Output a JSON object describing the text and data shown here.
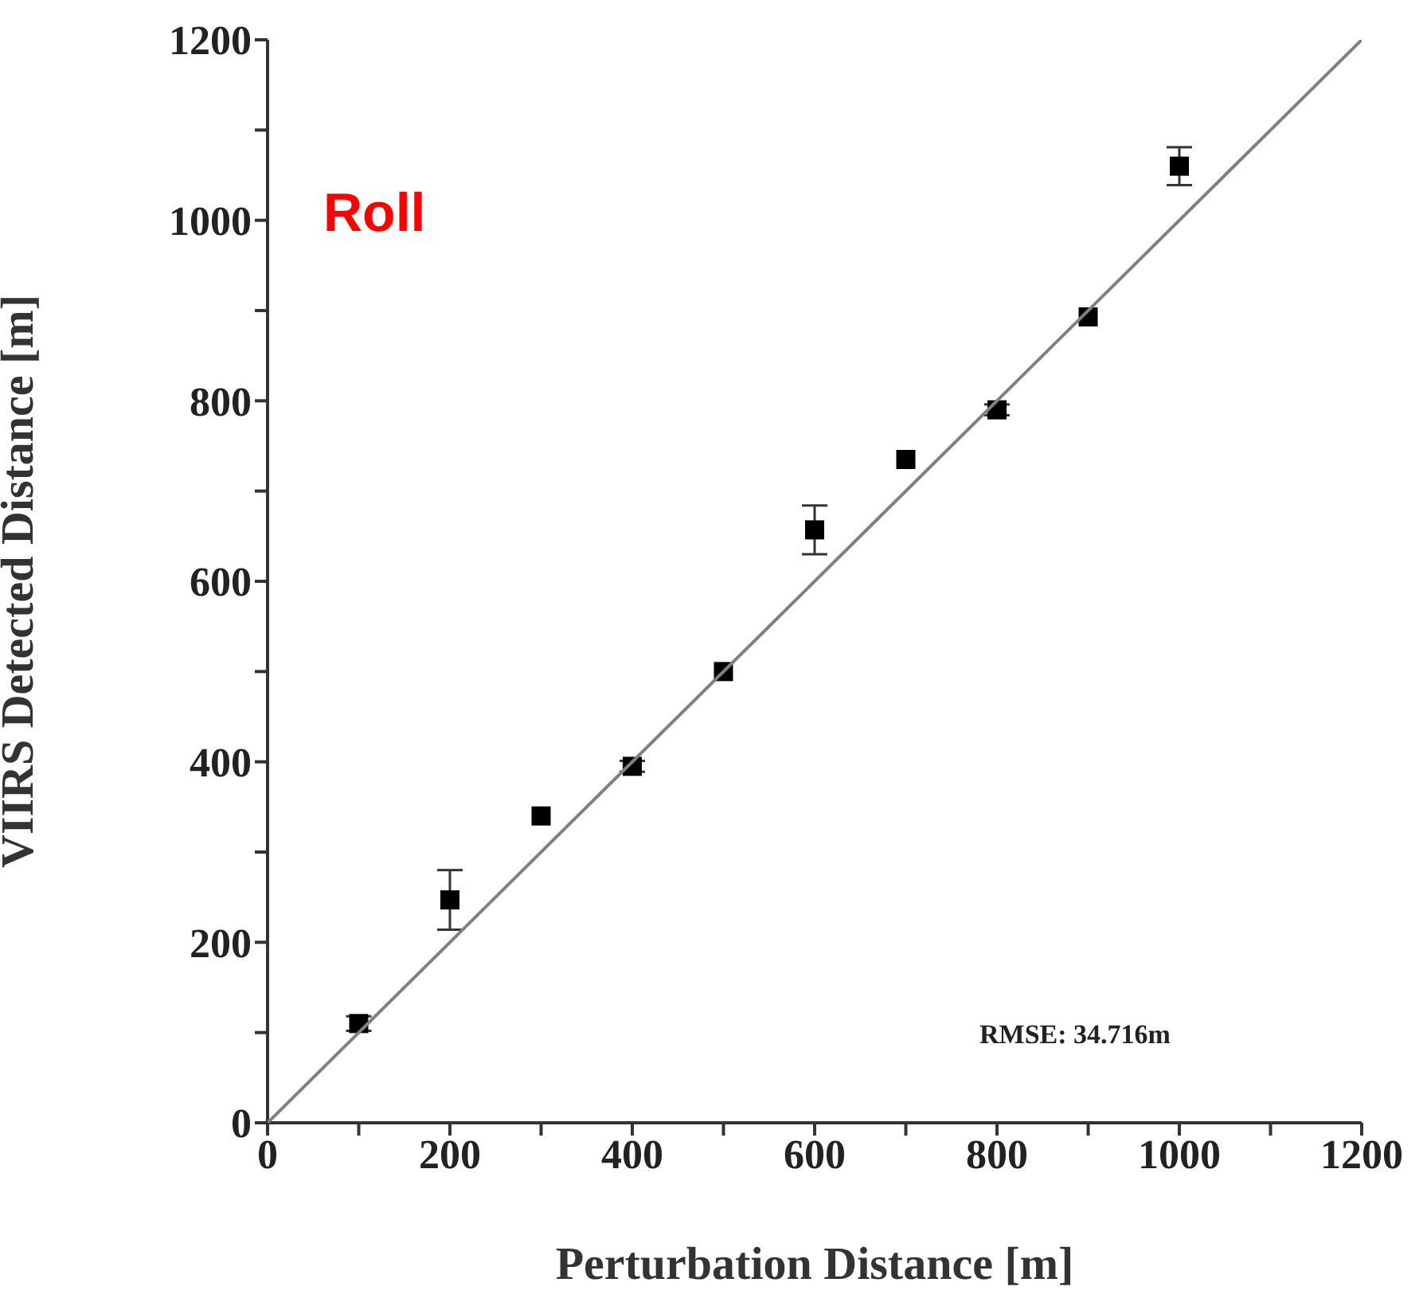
{
  "chart_data": {
    "type": "scatter",
    "xlabel": "Perturbation Distance [m]",
    "ylabel": "VIIRS Detected Distance [m]",
    "x": [
      100,
      200,
      300,
      400,
      500,
      600,
      700,
      800,
      900,
      1000
    ],
    "series": [
      {
        "type": "scatter",
        "color": "#000000",
        "marker": "square",
        "values": [
          110,
          247,
          340,
          395,
          500,
          657,
          735,
          790,
          893,
          1060
        ],
        "errors": [
          8,
          33,
          null,
          6,
          null,
          27,
          null,
          6,
          null,
          21
        ]
      },
      {
        "type": "line",
        "color": "#808080",
        "x": [
          0,
          1200
        ],
        "values": [
          0,
          1200
        ],
        "marker": "none"
      }
    ],
    "xlim": [
      0,
      1200
    ],
    "ylim": [
      0,
      1200
    ],
    "xticks": [
      0,
      {
        "value": 100,
        "label": null
      },
      200,
      {
        "value": 300,
        "label": null
      },
      400,
      {
        "value": 500,
        "label": null
      },
      600,
      {
        "value": 700,
        "label": null
      },
      800,
      {
        "value": 900,
        "label": null
      },
      1000,
      {
        "value": 1100,
        "label": null
      },
      1200
    ],
    "yticks": [
      0,
      {
        "value": 100,
        "label": null
      },
      200,
      {
        "value": 300,
        "label": null
      },
      400,
      {
        "value": 500,
        "label": null
      },
      600,
      {
        "value": 700,
        "label": null
      },
      800,
      {
        "value": 900,
        "label": null
      },
      1000,
      {
        "value": 1100,
        "label": null
      },
      1200
    ],
    "annotations": [
      "Roll",
      "RMSE: 34.716m"
    ]
  }
}
